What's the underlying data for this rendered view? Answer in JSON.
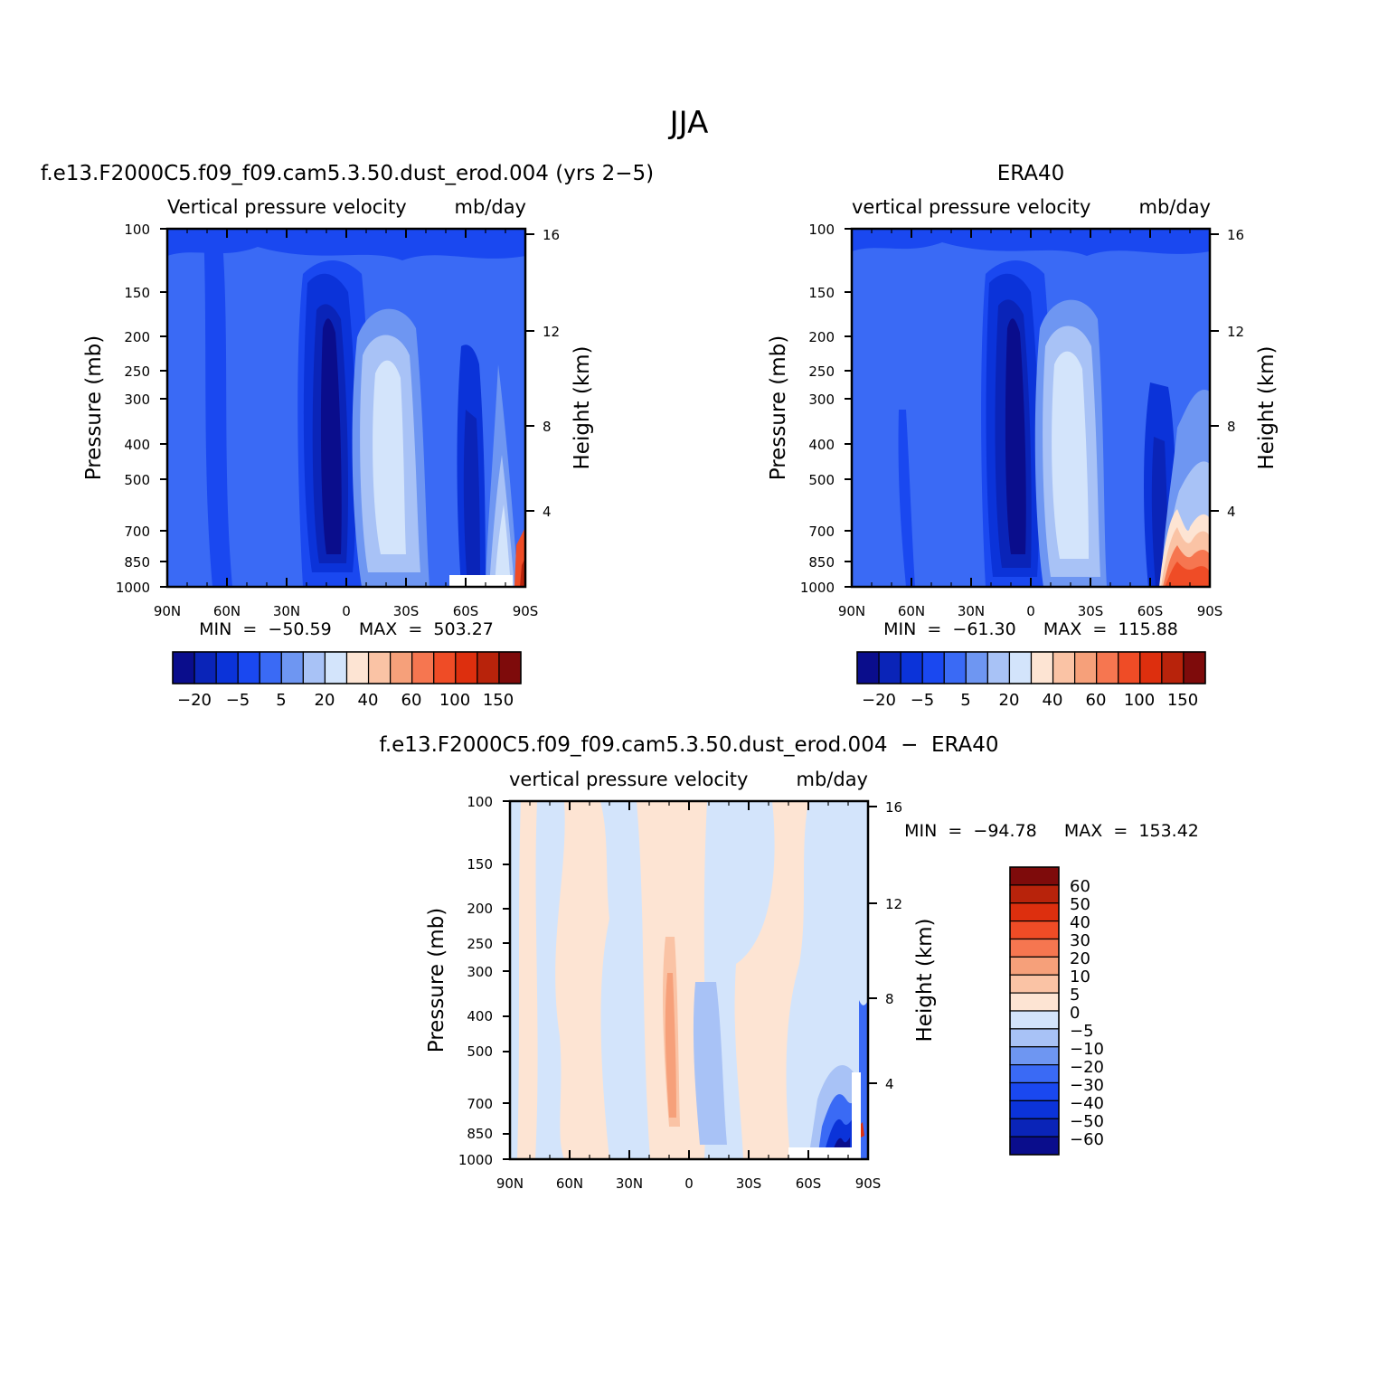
{
  "figure": {
    "title": "JJA"
  },
  "colors": {
    "top_levels": [
      "#0a0d8c",
      "#0a24b8",
      "#0b33d9",
      "#1a48f0",
      "#3a6af5",
      "#6e96f2",
      "#a8c2f6",
      "#d3e4fb",
      "#fde4d3",
      "#fac3a5",
      "#f6a07a",
      "#f67650",
      "#ef4c26",
      "#dd2f0e",
      "#b8230b",
      "#7e0b0b"
    ],
    "diff_levels": [
      "#0a0d8c",
      "#0a24b8",
      "#0b33d9",
      "#1a48f0",
      "#3a6af5",
      "#6e96f2",
      "#a8c2f6",
      "#d3e4fb",
      "#fde4d3",
      "#fac3a5",
      "#f6a07a",
      "#f67650",
      "#ef4c26",
      "#dd2f0e",
      "#b8230b",
      "#7e0b0b"
    ]
  },
  "chart_data": [
    {
      "type": "heatmap",
      "title": "f.e13.F2000C5.f09_f09.cam5.3.50.dust_erod.004 (yrs 2−5)",
      "subtitle_left": "Vertical  pressure  velocity",
      "subtitle_right": "mb/day",
      "ylabel": "Pressure  (mb)",
      "ylabel_right": "Height  (km)",
      "x_ticks": [
        "90N",
        "60N",
        "30N",
        "0",
        "30S",
        "60S",
        "90S"
      ],
      "y_ticks": [
        "100",
        "150",
        "200",
        "250",
        "300",
        "400",
        "500",
        "700",
        "850",
        "1000"
      ],
      "y_ticks_right": [
        "16",
        "12",
        "8",
        "4"
      ],
      "min_max": "MIN  =  −50.59     MAX  =  503.27",
      "colorbar_labels": [
        "−20",
        "−5",
        "5",
        "20",
        "40",
        "60",
        "100",
        "150"
      ]
    },
    {
      "type": "heatmap",
      "title": "ERA40",
      "subtitle_left": "vertical  pressure  velocity",
      "subtitle_right": "mb/day",
      "ylabel": "Pressure  (mb)",
      "ylabel_right": "Height  (km)",
      "x_ticks": [
        "90N",
        "60N",
        "30N",
        "0",
        "30S",
        "60S",
        "90S"
      ],
      "y_ticks": [
        "100",
        "150",
        "200",
        "250",
        "300",
        "400",
        "500",
        "700",
        "850",
        "1000"
      ],
      "y_ticks_right": [
        "16",
        "12",
        "8",
        "4"
      ],
      "min_max": "MIN  =  −61.30     MAX  =  115.88",
      "colorbar_labels": [
        "−20",
        "−5",
        "5",
        "20",
        "40",
        "60",
        "100",
        "150"
      ]
    },
    {
      "type": "heatmap",
      "title": "f.e13.F2000C5.f09_f09.cam5.3.50.dust_erod.004  −  ERA40",
      "subtitle_left": "vertical  pressure  velocity",
      "subtitle_right": "mb/day",
      "ylabel": "Pressure  (mb)",
      "ylabel_right": "Height  (km)",
      "x_ticks": [
        "90N",
        "60N",
        "30N",
        "0",
        "30S",
        "60S",
        "90S"
      ],
      "y_ticks": [
        "100",
        "150",
        "200",
        "250",
        "300",
        "400",
        "500",
        "700",
        "850",
        "1000"
      ],
      "y_ticks_right": [
        "16",
        "12",
        "8",
        "4"
      ],
      "min_max": "MIN  =  −94.78     MAX  =  153.42",
      "colorbar_labels": [
        "60",
        "50",
        "40",
        "30",
        "20",
        "10",
        "5",
        "0",
        "−5",
        "−10",
        "−20",
        "−30",
        "−40",
        "−50",
        "−60"
      ]
    }
  ]
}
